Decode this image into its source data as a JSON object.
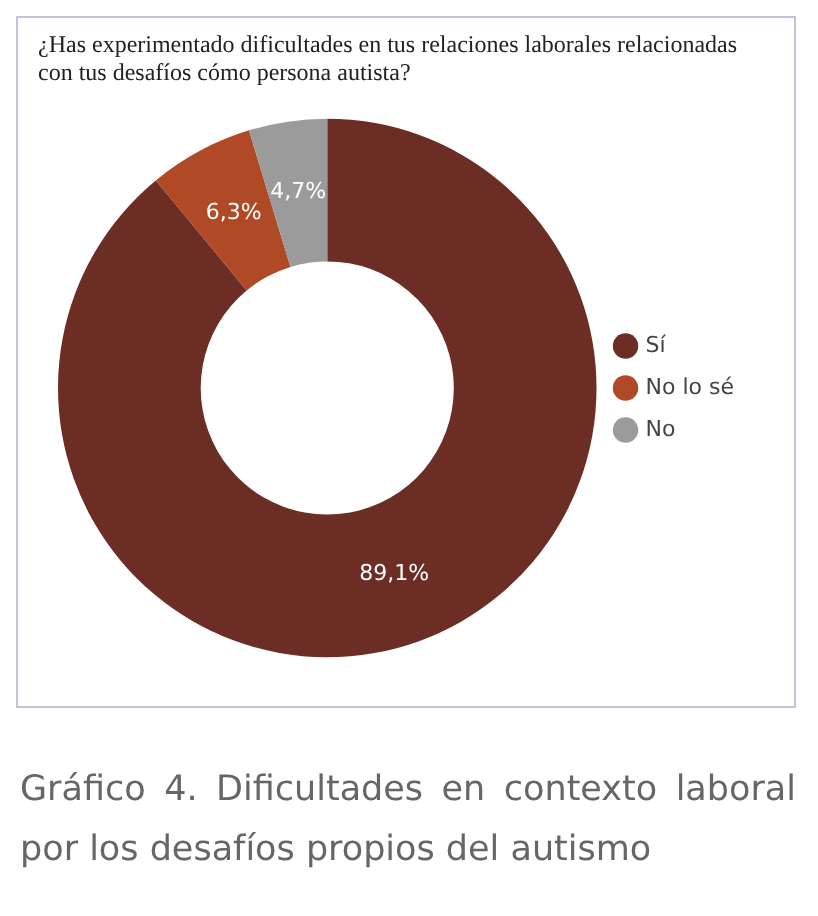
{
  "chart_data": {
    "type": "donut",
    "title": "¿Has experimentado dificultades en tus relaciones laborales relacionadas con tus desafíos cómo persona autista?",
    "categories": [
      "Sí",
      "No lo sé",
      "No"
    ],
    "values": [
      89.1,
      6.3,
      4.7
    ],
    "value_labels": [
      "89,1%",
      "6,3%",
      "4,7%"
    ],
    "colors": [
      "#6b2d24",
      "#b04a26",
      "#9b9b9b"
    ],
    "legend": "right",
    "annotations": [
      "Gráfico 4. Dificultades en contexto laboral por los desafíos propios del autismo"
    ]
  }
}
